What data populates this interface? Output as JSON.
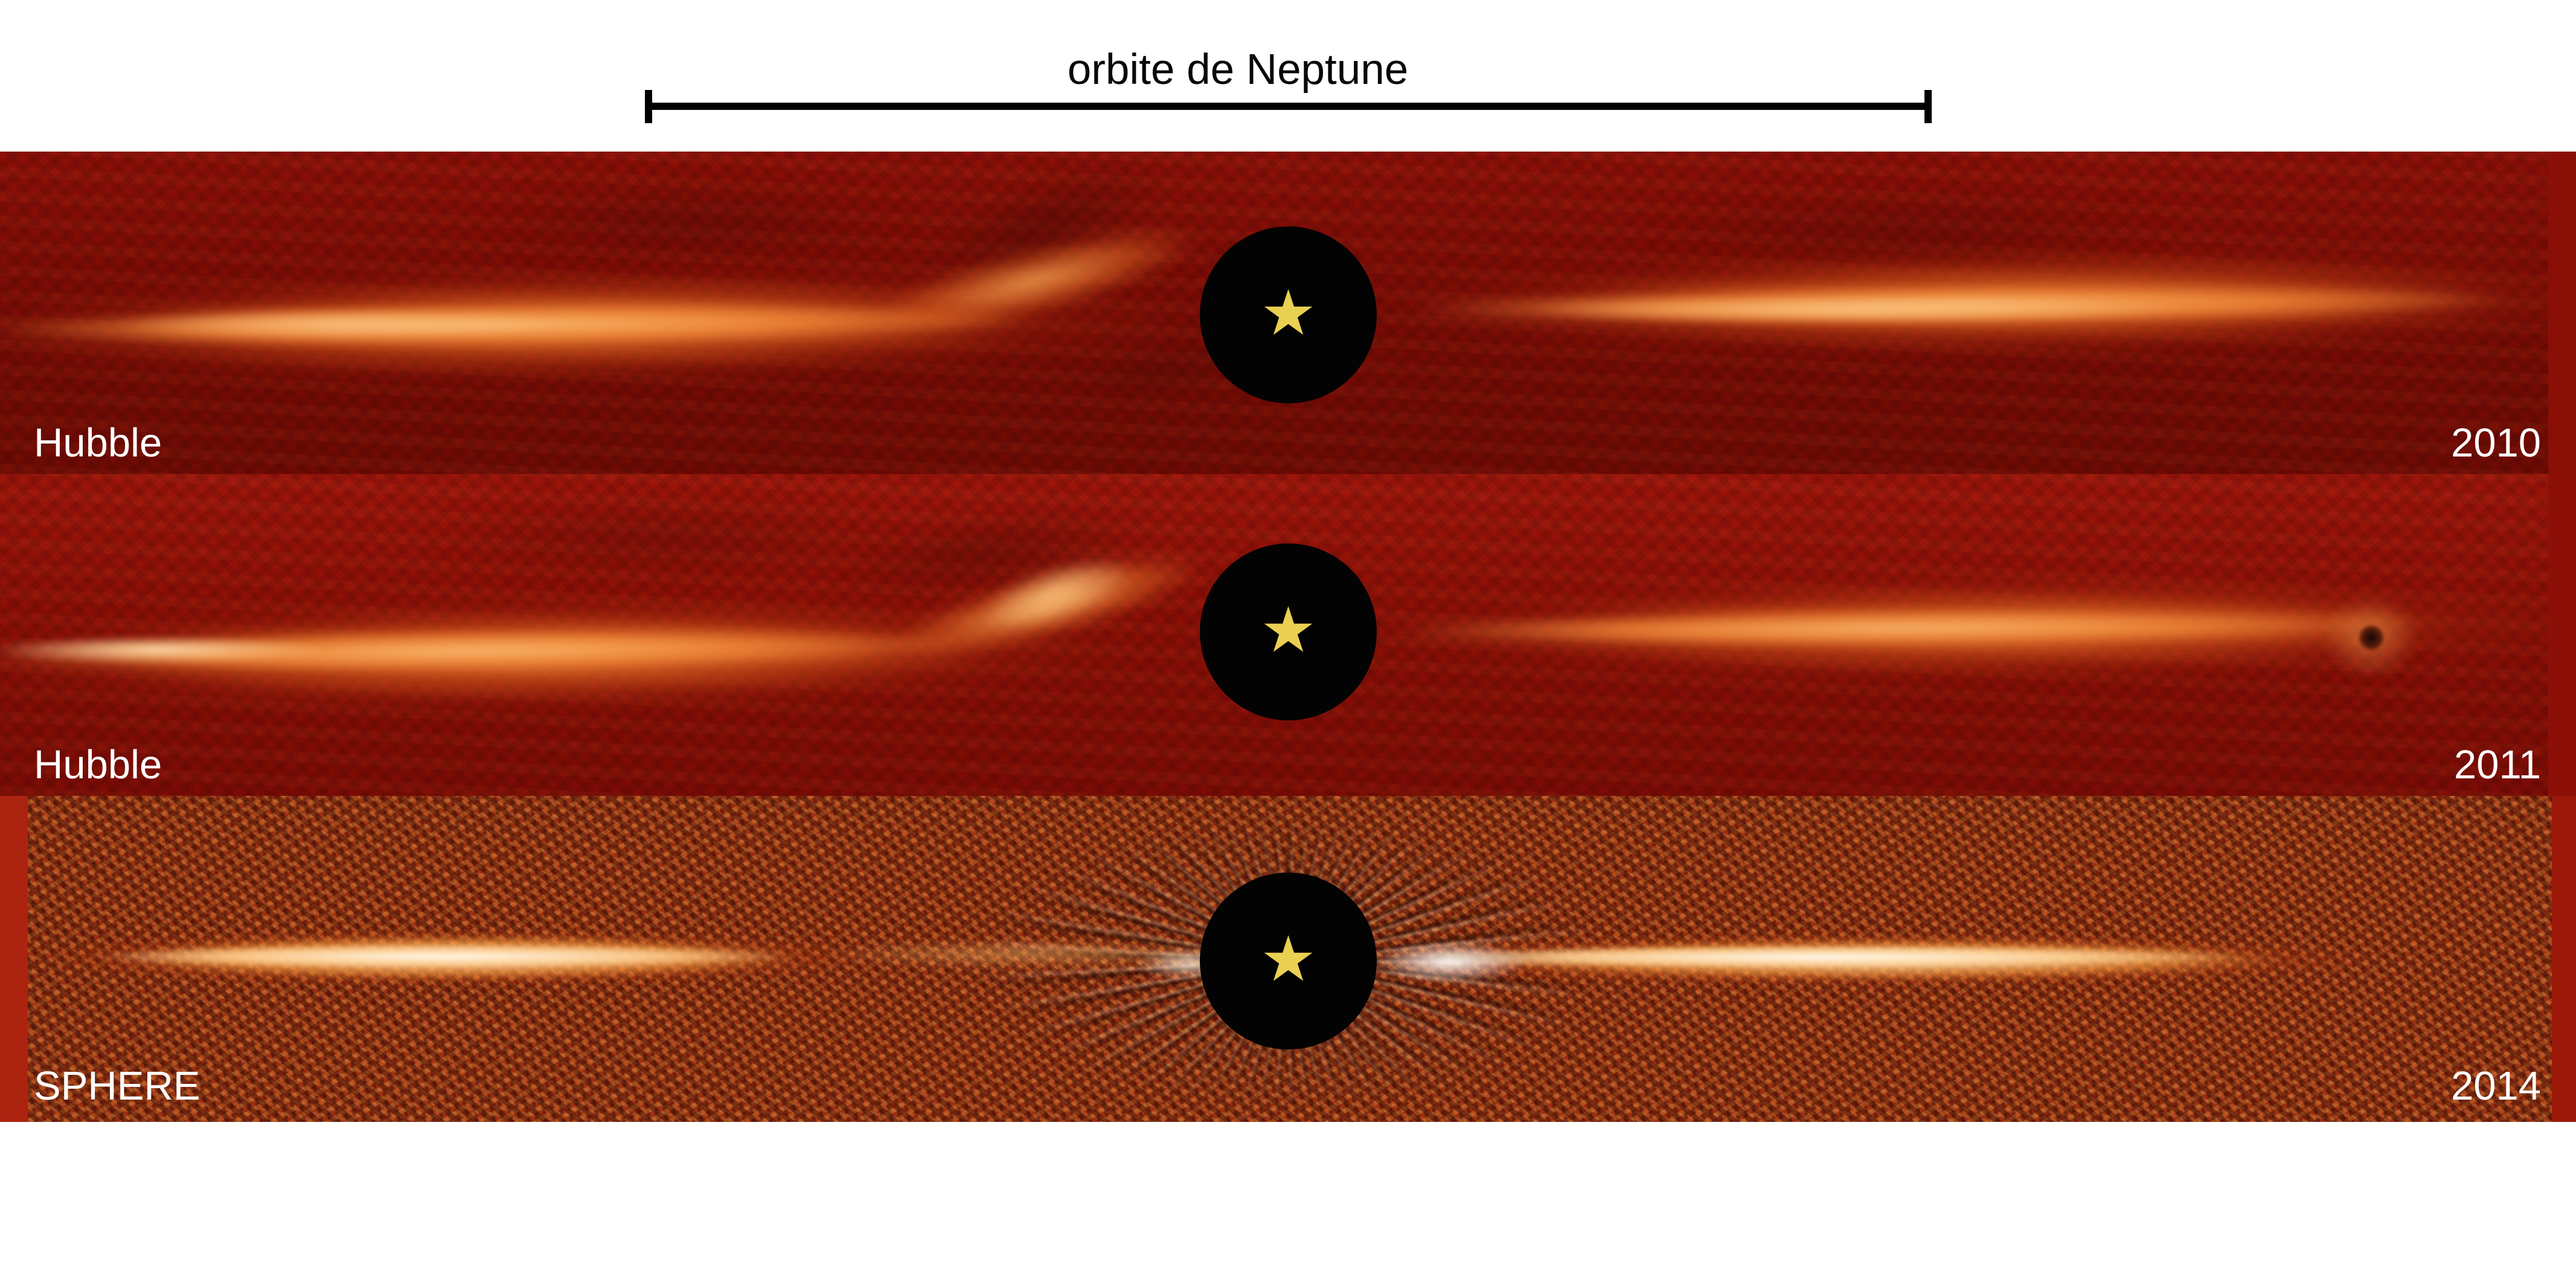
{
  "scalebar": {
    "label": "orbite de Neptune",
    "color": "#000000"
  },
  "panels": [
    {
      "instrument": "Hubble",
      "year": "2010",
      "background_color": "#7d0c05",
      "band_color": "#ee8238",
      "label_color": "#ffffff"
    },
    {
      "instrument": "Hubble",
      "year": "2011",
      "background_color": "#8b0f06",
      "band_color": "#ee8238",
      "label_color": "#ffffff"
    },
    {
      "instrument": "SPHERE",
      "year": "2014",
      "background_color": "#993011",
      "band_color": "#ffefd2",
      "label_color": "#ffffff"
    }
  ],
  "star": {
    "glyph": "★",
    "color": "#e9d052",
    "mask_color": "#000000"
  }
}
